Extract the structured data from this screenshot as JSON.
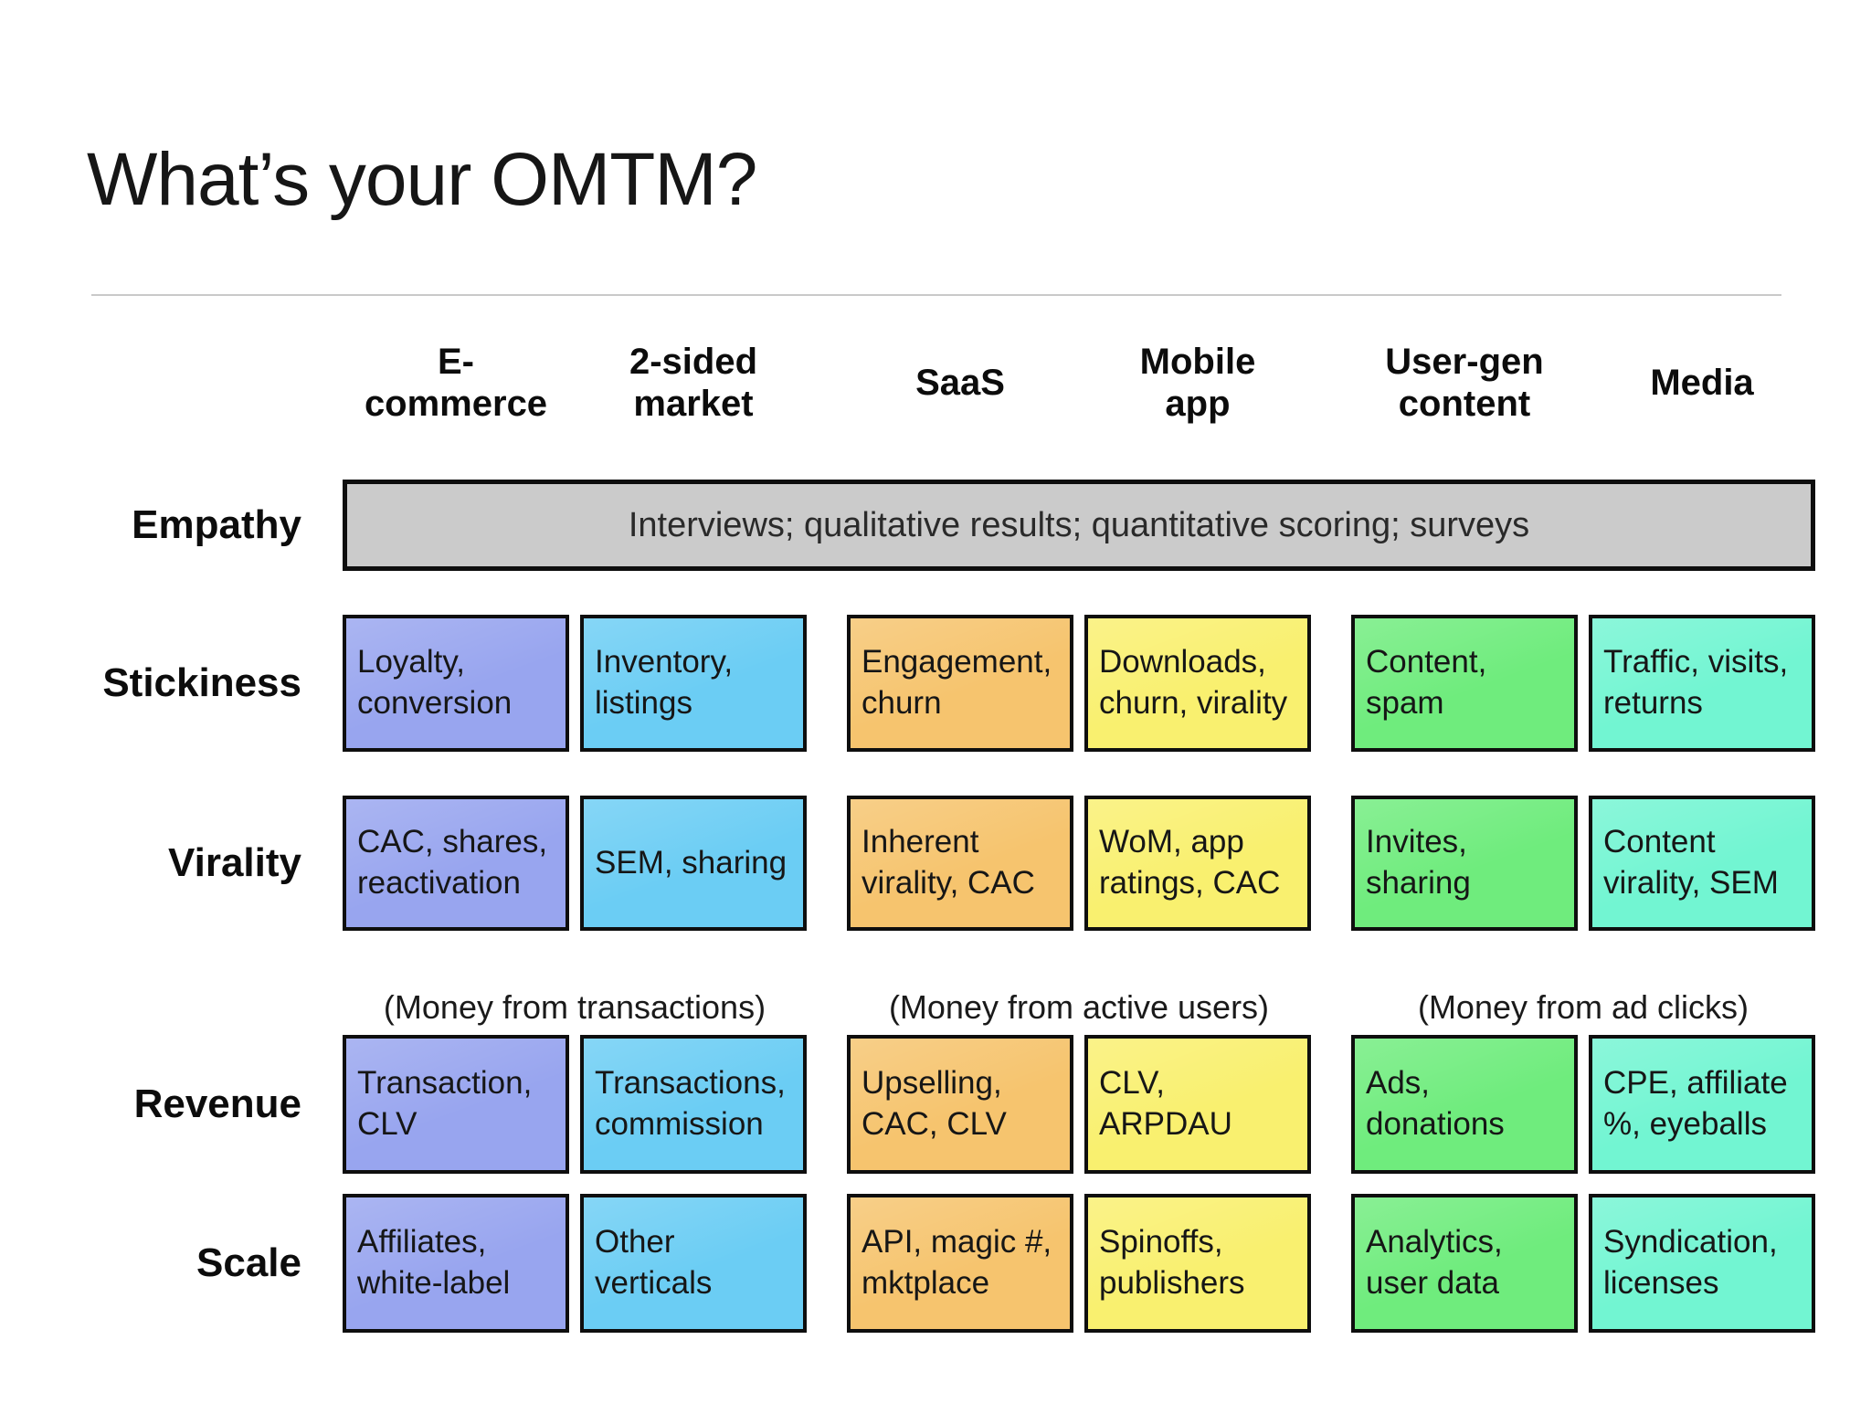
{
  "slide": {
    "title": "What’s your OMTM?"
  },
  "colors": {
    "empathy_bar": "#cbcbcb",
    "box_border": "#0e0e0e",
    "title_text": "#161616",
    "divider": "#c9c9c9"
  },
  "matrix": {
    "columns": [
      {
        "id": "ecommerce",
        "label": "E-\ncommerce",
        "color": "#98a5ef"
      },
      {
        "id": "two-sided-market",
        "label": "2-sided\nmarket",
        "color": "#6bcdf4"
      },
      {
        "id": "saas",
        "label": "SaaS",
        "color": "#f6c46e"
      },
      {
        "id": "mobile-app",
        "label": "Mobile\napp",
        "color": "#f9f06f"
      },
      {
        "id": "user-gen-content",
        "label": "User-gen\ncontent",
        "color": "#6fec7d"
      },
      {
        "id": "media",
        "label": "Media",
        "color": "#72f5d2"
      }
    ],
    "rows": [
      {
        "label": "Empathy",
        "span_text": "Interviews; qualitative results; quantitative scoring; surveys"
      },
      {
        "label": "Stickiness",
        "cells": [
          "Loyalty, conversion",
          "Inventory, listings",
          "Engagement, churn",
          "Downloads, churn, virality",
          "Content, spam",
          "Traffic, visits, returns"
        ]
      },
      {
        "label": "Virality",
        "cells": [
          "CAC, shares, reactivation",
          "SEM, sharing",
          "Inherent virality, CAC",
          "WoM, app ratings, CAC",
          "Invites, sharing",
          "Content virality, SEM"
        ]
      },
      {
        "label": "Revenue",
        "annotations": [
          "(Money from transactions)",
          "(Money from active users)",
          "(Money from ad clicks)"
        ],
        "cells": [
          "Transaction, CLV",
          "Transactions, commission",
          "Upselling, CAC, CLV",
          "CLV, ARPDAU",
          "Ads, donations",
          "CPE, affiliate %, eyeballs"
        ]
      },
      {
        "label": "Scale",
        "cells": [
          "Affiliates, white-label",
          "Other verticals",
          "API, magic #, mktplace",
          "Spinoffs, publishers",
          "Analytics, user data",
          "Syndication, licenses"
        ]
      }
    ]
  }
}
